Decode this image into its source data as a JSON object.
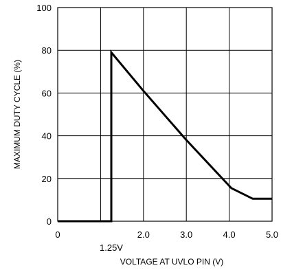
{
  "chart_data": {
    "type": "line",
    "title": "",
    "xlabel": "VOLTAGE AT UVLO PIN (V)",
    "ylabel": "MAXIMUM DUTY CYCLE (%)",
    "xlim": [
      0,
      5
    ],
    "ylim": [
      0,
      100
    ],
    "x_ticks": [
      0,
      1,
      2,
      3,
      4,
      5
    ],
    "x_tick_labels": [
      "0",
      "",
      "2.0",
      "3.0",
      "4.0",
      "5.0"
    ],
    "y_ticks": [
      0,
      20,
      40,
      60,
      80,
      100
    ],
    "y_tick_labels": [
      "0",
      "20",
      "40",
      "60",
      "80",
      "100"
    ],
    "grid": true,
    "annotations": [
      {
        "text": "1.25V",
        "x": 1.25
      }
    ],
    "series": [
      {
        "x": [
          0,
          1.25,
          1.25,
          2.0,
          3.0,
          4.05,
          4.55,
          5.0
        ],
        "y": [
          0,
          0,
          79,
          61,
          38,
          15.5,
          10.5,
          10.5
        ]
      }
    ],
    "colors": {
      "line": "#000000",
      "grid": "#000000",
      "frame": "#000000"
    }
  }
}
